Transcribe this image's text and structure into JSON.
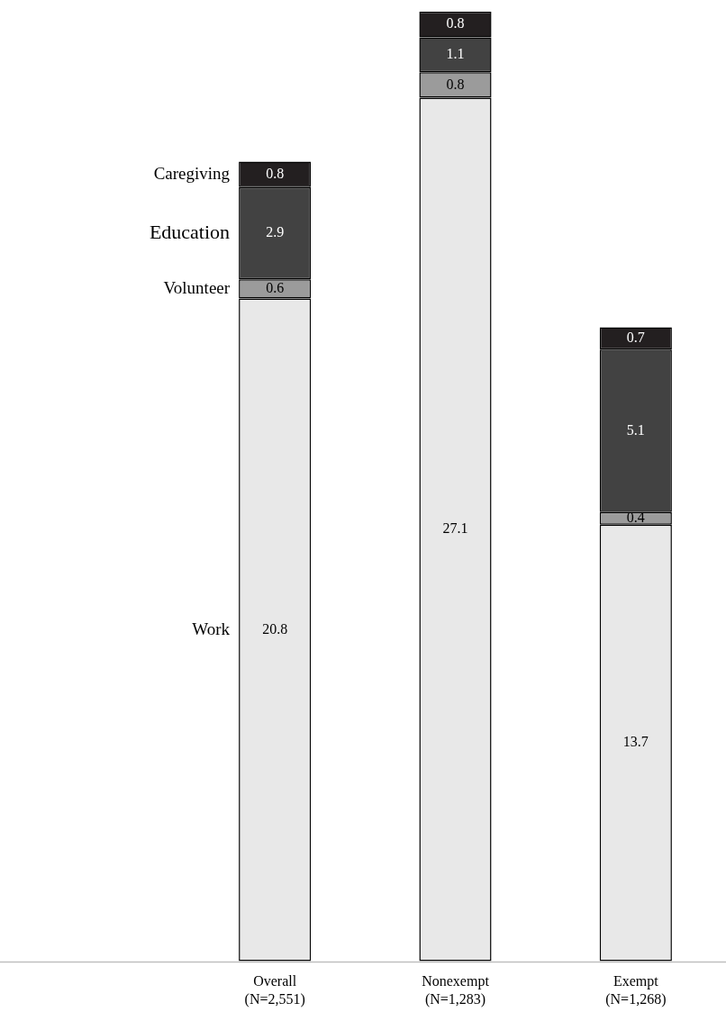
{
  "chart_data": {
    "type": "bar",
    "stacked": true,
    "data_labels": true,
    "legend": false,
    "grid": false,
    "categories": [
      "Overall\n(N=2,551)",
      "Nonexempt\n(N=1,283)",
      "Exempt\n(N=1,268)"
    ],
    "series": [
      {
        "name": "Work",
        "color": "#e8e8e8",
        "values": [
          20.8,
          27.1,
          13.7
        ]
      },
      {
        "name": "Volunteer",
        "color": "#9b9b9b",
        "values": [
          0.6,
          0.8,
          0.4
        ]
      },
      {
        "name": "Education",
        "color": "#424242",
        "values": [
          2.9,
          1.1,
          5.1
        ]
      },
      {
        "name": "Caregiving",
        "color": "#231f20",
        "values": [
          0.8,
          0.8,
          0.7
        ]
      }
    ]
  }
}
